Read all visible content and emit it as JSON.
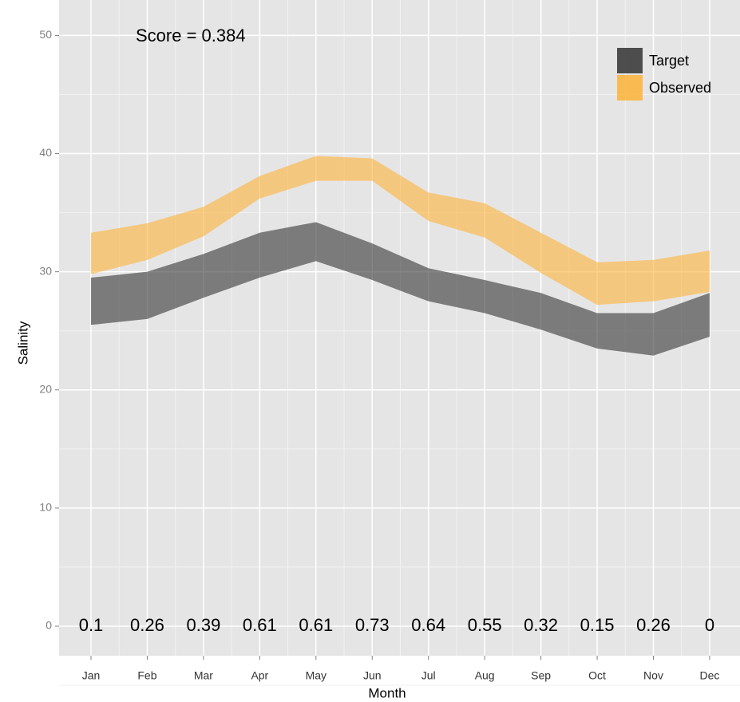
{
  "chart_data": {
    "type": "ribbon",
    "annotation": "Score = 0.384",
    "xlabel": "Month",
    "ylabel": "Salinity",
    "categories": [
      "Jan",
      "Feb",
      "Mar",
      "Apr",
      "May",
      "Jun",
      "Jul",
      "Aug",
      "Sep",
      "Oct",
      "Nov",
      "Dec"
    ],
    "series": [
      {
        "name": "Target",
        "color": "#333333",
        "low": [
          25.5,
          26.0,
          27.8,
          29.5,
          30.9,
          29.3,
          27.5,
          26.5,
          25.1,
          23.5,
          22.9,
          24.5
        ],
        "high": [
          29.5,
          30.0,
          31.5,
          33.3,
          34.2,
          32.4,
          30.3,
          29.3,
          28.2,
          26.5,
          26.5,
          28.2
        ]
      },
      {
        "name": "Observed",
        "color": "#fdb338",
        "low": [
          29.8,
          31.0,
          33.0,
          36.2,
          37.7,
          37.7,
          34.3,
          32.9,
          29.9,
          27.2,
          27.5,
          28.3
        ],
        "high": [
          33.3,
          34.1,
          35.5,
          38.1,
          39.8,
          39.6,
          36.7,
          35.8,
          33.3,
          30.8,
          31.0,
          31.8
        ]
      }
    ],
    "month_scores": [
      0.1,
      0.26,
      0.39,
      0.61,
      0.61,
      0.73,
      0.64,
      0.55,
      0.32,
      0.15,
      0.26,
      0
    ],
    "alpha": 0.6,
    "ylim": [
      -2.5,
      53
    ],
    "yticks": [
      0,
      10,
      20,
      30,
      40,
      50
    ],
    "grid": true,
    "legend": "top-right"
  }
}
